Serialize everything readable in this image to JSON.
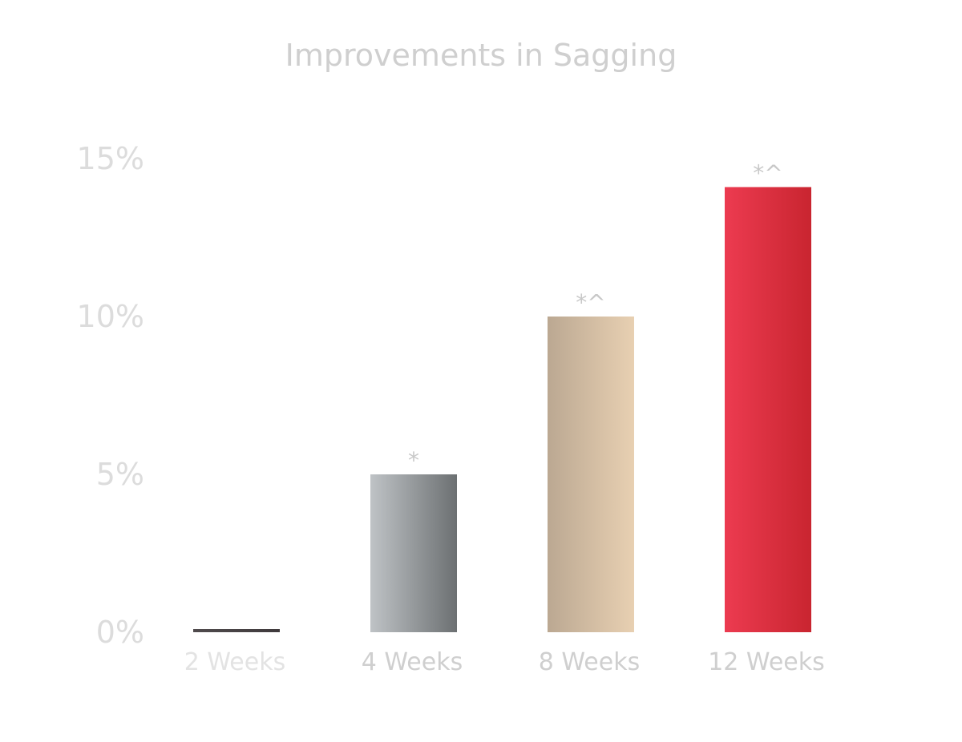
{
  "chart_data": {
    "type": "bar",
    "title": "Improvements in Sagging",
    "xlabel": "",
    "ylabel": "",
    "categories": [
      "2 Weeks",
      "4 Weeks",
      "8 Weeks",
      "12 Weeks"
    ],
    "values": [
      0.1,
      5.0,
      10.0,
      14.1
    ],
    "annotations": [
      "",
      "*",
      "*^",
      "*^"
    ],
    "ylim": [
      0,
      15
    ],
    "yticks": [
      0,
      5,
      10,
      15
    ],
    "ytick_labels": [
      "0%",
      "5%",
      "10%",
      "15%"
    ],
    "grid": false,
    "legend": "none",
    "colors": [
      [
        "#504b4d",
        "#3f3a3c"
      ],
      [
        "#bfc3c6",
        "#6c7072"
      ],
      [
        "#bba892",
        "#e8d0b2"
      ],
      [
        "#ec3b50",
        "#c92530"
      ]
    ]
  }
}
